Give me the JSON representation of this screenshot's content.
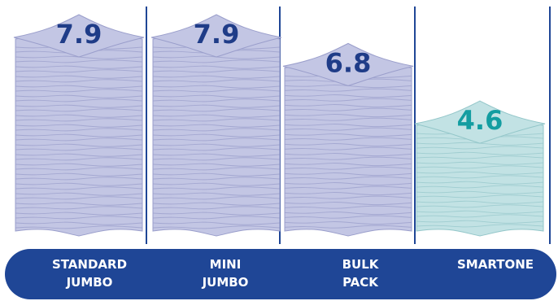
{
  "chart_data": {
    "type": "bar",
    "title": "",
    "xlabel": "",
    "ylabel": "",
    "categories": [
      "STANDARD\nJUMBO",
      "MINI\nJUMBO",
      "BULK\nPACK",
      "SMARTONE"
    ],
    "values": [
      7.9,
      7.9,
      6.8,
      4.6
    ],
    "value_labels": [
      "7.9",
      "7.9",
      "6.8",
      "4.6"
    ],
    "ylim": [
      0,
      8.2
    ],
    "grid": false,
    "legend": "none",
    "colors": {
      "stack": [
        "#c3c6e4",
        "#c3c6e4",
        "#c3c6e4",
        "#c2e2e4"
      ],
      "stack_edge": [
        "#9a9ecb",
        "#9a9ecb",
        "#9a9ecb",
        "#93c6c9"
      ],
      "value_text": [
        "#1f3c88",
        "#1f3c88",
        "#1f3c88",
        "#139da1"
      ],
      "divider": "#1f4696",
      "category_band": "#1f4696",
      "category_text": "#ffffff"
    }
  }
}
